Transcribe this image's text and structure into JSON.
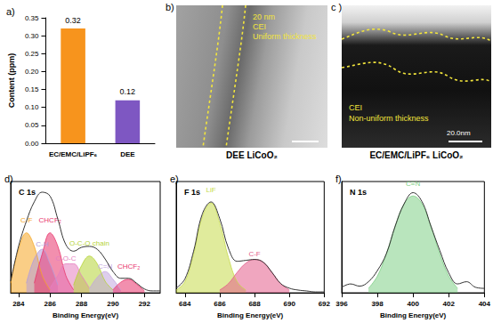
{
  "chart_data": [
    {
      "type": "bar",
      "title": "a)",
      "categories": [
        "EC/EMC/LiPF₆",
        "DEE"
      ],
      "values": [
        0.32,
        0.12
      ],
      "colors": [
        "#F7941D",
        "#7E57C2"
      ],
      "ylabel": "Content (ppm)",
      "ylim": [
        0,
        0.35
      ],
      "yticks": [
        {
          "value": 0,
          "label": "0.00"
        },
        {
          "value": 0.05,
          "label": "0.05"
        },
        {
          "value": 0.1,
          "label": "0.10"
        },
        {
          "value": 0.15,
          "label": "0.15"
        },
        {
          "value": 0.2,
          "label": "0.20"
        },
        {
          "value": 0.25,
          "label": "0.25"
        },
        {
          "value": 0.3,
          "label": "0.30"
        },
        {
          "value": 0.35,
          "label": "0.35"
        }
      ],
      "data_labels": true,
      "grid": false
    },
    {
      "type": "line",
      "title": "d)",
      "subtitle": "C 1s",
      "xlabel": "Binding Energy(eV)",
      "xlim": [
        283.5,
        293
      ],
      "xticks": [
        284,
        286,
        288,
        290,
        292
      ],
      "ylim": [
        0,
        115
      ],
      "tick_labels": "x",
      "grid": false,
      "series": [
        {
          "type": "line",
          "color": "#333333",
          "x": [
            283.5,
            284,
            284.5,
            285,
            285.5,
            286,
            286.5,
            287,
            287.5,
            288,
            288.5,
            289,
            289.5,
            290,
            290.5,
            291,
            291.5,
            292,
            292.5,
            293
          ],
          "values": [
            12,
            48,
            74,
            94,
            104,
            100,
            76,
            50,
            43,
            47,
            48,
            45,
            35,
            22,
            15,
            15,
            10,
            4,
            2,
            2
          ]
        },
        {
          "type": "area",
          "name": "C-F",
          "color": "#F5A623",
          "x": [
            283.5,
            284,
            284.5,
            285,
            285.5,
            286
          ],
          "values": [
            10,
            45,
            62,
            48,
            18,
            3
          ]
        },
        {
          "type": "area",
          "name": "C-H",
          "color": "#B39DDB",
          "x": [
            284.5,
            285,
            285.5,
            286,
            286.5
          ],
          "values": [
            10,
            35,
            45,
            30,
            8
          ]
        },
        {
          "type": "area",
          "name": "CHCF₂",
          "color": "#E8336B",
          "x": [
            285,
            285.5,
            286,
            286.5,
            287,
            287.5
          ],
          "values": [
            10,
            40,
            62,
            48,
            18,
            3
          ]
        },
        {
          "type": "area",
          "name": "C-O-C",
          "color": "#E57FC0",
          "x": [
            286,
            286.5,
            287,
            287.5,
            288,
            288.5
          ],
          "values": [
            5,
            18,
            30,
            30,
            18,
            5
          ]
        },
        {
          "type": "area",
          "name": "O-C-O chain",
          "color": "#B5D334",
          "x": [
            287.5,
            288,
            288.5,
            289,
            289.5,
            290
          ],
          "values": [
            8,
            28,
            38,
            30,
            12,
            3
          ]
        },
        {
          "type": "area",
          "name": "C=N",
          "color": "#C3A5E0",
          "x": [
            288.5,
            289,
            289.5,
            290,
            290.5
          ],
          "values": [
            4,
            16,
            22,
            14,
            3
          ]
        },
        {
          "type": "area",
          "name": "CHCF₂",
          "color": "#E8336B",
          "x": [
            290,
            290.5,
            291,
            291.5,
            292
          ],
          "values": [
            3,
            11,
            14,
            9,
            2
          ]
        }
      ]
    },
    {
      "type": "line",
      "title": "e)",
      "subtitle": "F 1s",
      "xlabel": "Binding Energy(eV)",
      "xlim": [
        683.5,
        692
      ],
      "xticks": [
        684,
        686,
        688,
        690,
        692
      ],
      "ylim": [
        0,
        120
      ],
      "tick_labels": "x",
      "grid": false,
      "series": [
        {
          "type": "line",
          "color": "#333333",
          "x": [
            683.5,
            684,
            684.5,
            685,
            685.5,
            686,
            686.5,
            687,
            687.5,
            688,
            688.5,
            689,
            689.5,
            690,
            690.5,
            691,
            691.5,
            692
          ],
          "values": [
            5,
            15,
            45,
            85,
            98,
            80,
            48,
            34,
            35,
            36,
            33,
            22,
            10,
            5,
            3,
            2,
            1,
            1
          ]
        },
        {
          "type": "area",
          "name": "LiF",
          "color": "#C6DB4A",
          "x": [
            683.5,
            684,
            684.5,
            685,
            685.5,
            686,
            686.5,
            687,
            687.5
          ],
          "values": [
            3,
            12,
            42,
            82,
            97,
            75,
            38,
            12,
            3
          ]
        },
        {
          "type": "area",
          "name": "C-F",
          "color": "#E35D8A",
          "x": [
            686,
            686.5,
            687,
            687.5,
            688,
            688.5,
            689,
            689.5,
            690
          ],
          "values": [
            3,
            10,
            22,
            32,
            36,
            33,
            22,
            10,
            3
          ]
        }
      ]
    },
    {
      "type": "line",
      "title": "f)",
      "subtitle": "N 1s",
      "xlabel": "Binding Energy(eV)",
      "xlim": [
        396,
        404
      ],
      "xticks": [
        396,
        398,
        400,
        402,
        404
      ],
      "ylim": [
        0,
        100
      ],
      "tick_labels": "x",
      "grid": false,
      "series": [
        {
          "type": "line",
          "color": "#333333",
          "x": [
            396,
            396.5,
            397,
            397.5,
            398,
            398.5,
            399,
            399.5,
            400,
            400.5,
            401,
            401.5,
            402,
            402.5,
            403,
            403.5,
            404
          ],
          "values": [
            5,
            8,
            6,
            10,
            20,
            35,
            60,
            80,
            90,
            82,
            60,
            38,
            18,
            8,
            10,
            5,
            4
          ]
        },
        {
          "type": "area",
          "name": "C≡N",
          "color": "#7FCF86",
          "x": [
            397.5,
            398,
            398.5,
            399,
            399.5,
            400,
            400.5,
            401,
            401.5,
            402,
            402.5
          ],
          "values": [
            4,
            15,
            35,
            60,
            80,
            87,
            80,
            60,
            35,
            15,
            4
          ]
        }
      ]
    }
  ],
  "images": [
    {
      "title": "b)",
      "caption": "DEE LiCoO₂",
      "annotations": [
        "20 nm",
        "CEI",
        "Uniform thickness"
      ]
    },
    {
      "title": "c )",
      "caption": "EC/EMC/LiPF₆ LiCoO₂",
      "annotations": [
        "CEI",
        "Non-uniform thickness"
      ],
      "scale_bar": "20.0nm"
    }
  ]
}
